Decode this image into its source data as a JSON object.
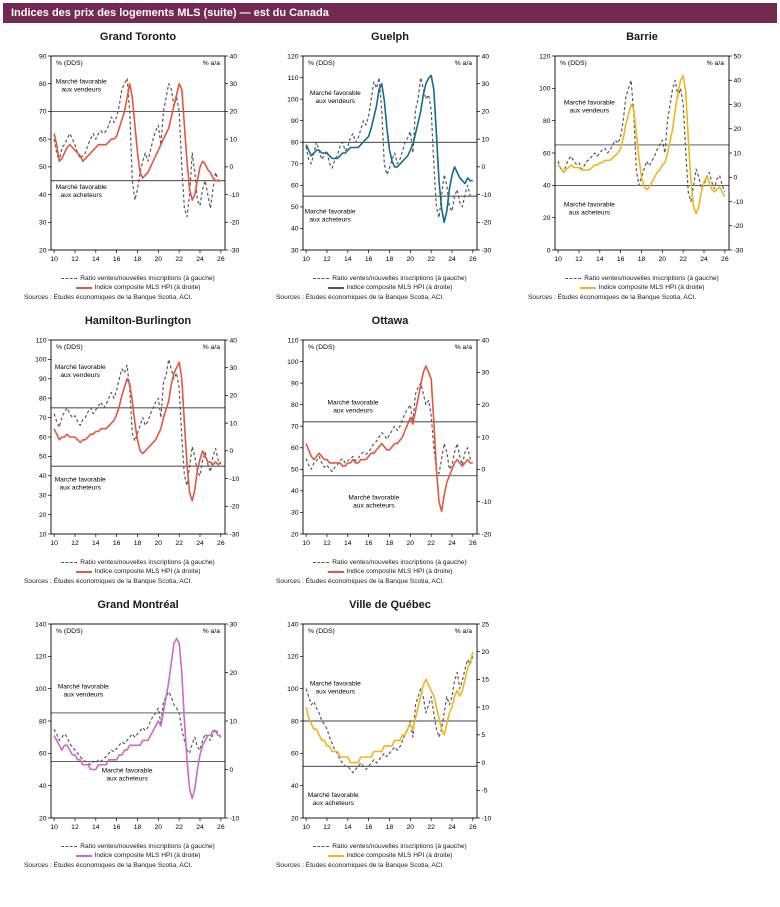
{
  "header": {
    "title": "Indices des prix des logements MLS (suite) — est du Canada",
    "bg_color": "#732a4e"
  },
  "shared": {
    "legend_ratio": "Ratio ventes/nouvelles inscriptions (à gauche)",
    "legend_hpi": "Indice composite MLS HPI (à droite)",
    "source": "Sources : Études économiques de la Banque Scotia, ACI.",
    "ratio_color": "#595959"
  },
  "chart_data": [
    {
      "type": "line",
      "title": "Grand Toronto",
      "color": "#e25740",
      "left_axis": {
        "label": "% (DDS)",
        "min": 20,
        "max": 90,
        "ticks": [
          20,
          30,
          40,
          50,
          60,
          70,
          80,
          90
        ]
      },
      "right_axis": {
        "label": "% a/a",
        "min": -30,
        "max": 40,
        "ticks": [
          -30,
          -20,
          -10,
          0,
          10,
          20,
          30,
          40
        ]
      },
      "x_ticks": [
        10,
        12,
        14,
        16,
        18,
        20,
        22,
        24,
        26
      ],
      "x_range": [
        9.7,
        26.4
      ],
      "ref_lines_left": [
        70,
        45
      ],
      "annotations": [
        {
          "lines": [
            "Marché favorable",
            "aux vendeurs"
          ],
          "x": 12.6,
          "y": 80
        },
        {
          "lines": [
            "Marché favorable",
            "aux acheteurs"
          ],
          "x": 12.6,
          "y": 42
        }
      ],
      "x_start": 10,
      "x_step": 0.25,
      "ratio_values": [
        60,
        55,
        52,
        57,
        58,
        60,
        62,
        60,
        58,
        55,
        53,
        54,
        55,
        58,
        60,
        62,
        60,
        62,
        63,
        62,
        63,
        65,
        68,
        66,
        68,
        72,
        78,
        80,
        82,
        70,
        45,
        38,
        42,
        48,
        52,
        55,
        52,
        56,
        60,
        63,
        65,
        58,
        70,
        75,
        80,
        78,
        72,
        75,
        70,
        50,
        35,
        32,
        40,
        55,
        48,
        38,
        36,
        42,
        45,
        40,
        35,
        42,
        48,
        45,
        44
      ],
      "hpi_values": [
        12,
        8,
        2,
        3,
        5,
        7,
        8,
        7,
        6,
        5,
        4,
        2,
        3,
        4,
        5,
        6,
        7,
        8,
        8,
        8,
        8,
        9,
        10,
        10,
        11,
        14,
        17,
        20,
        25,
        30,
        25,
        15,
        5,
        -2,
        -4,
        -3,
        -2,
        0,
        2,
        4,
        6,
        8,
        10,
        12,
        14,
        18,
        22,
        26,
        30,
        28,
        15,
        2,
        -8,
        -12,
        -10,
        -5,
        0,
        2,
        1,
        -1,
        -2,
        -4,
        -5,
        -5,
        -5
      ]
    },
    {
      "type": "line",
      "title": "Guelph",
      "color": "#0f6d8c",
      "left_axis": {
        "label": "% (DDS)",
        "min": 30,
        "max": 120,
        "ticks": [
          30,
          40,
          50,
          60,
          70,
          80,
          90,
          100,
          110,
          120
        ]
      },
      "right_axis": {
        "label": "% a/a",
        "min": -30,
        "max": 40,
        "ticks": [
          -30,
          -20,
          -10,
          0,
          10,
          20,
          30,
          40
        ]
      },
      "x_ticks": [
        10,
        12,
        14,
        16,
        18,
        20,
        22,
        24,
        26
      ],
      "x_range": [
        9.7,
        26.4
      ],
      "ref_lines_left": [
        80,
        55
      ],
      "annotations": [
        {
          "lines": [
            "Marché favorable",
            "aux vendeurs"
          ],
          "x": 12.8,
          "y": 102
        },
        {
          "lines": [
            "Marché favorable",
            "aux acheteurs"
          ],
          "x": 12.3,
          "y": 47
        }
      ],
      "x_start": 10,
      "x_step": 0.25,
      "ratio_values": [
        78,
        72,
        70,
        75,
        80,
        76,
        72,
        74,
        76,
        70,
        68,
        72,
        74,
        78,
        80,
        76,
        78,
        82,
        84,
        80,
        82,
        86,
        90,
        88,
        92,
        100,
        108,
        105,
        110,
        95,
        70,
        65,
        68,
        72,
        75,
        70,
        72,
        76,
        80,
        82,
        85,
        75,
        95,
        100,
        110,
        105,
        100,
        102,
        95,
        70,
        50,
        45,
        55,
        65,
        60,
        50,
        48,
        55,
        58,
        52,
        50,
        56,
        60,
        55,
        54
      ],
      "hpi_values": [
        8,
        6,
        4,
        5,
        6,
        6,
        5,
        5,
        5,
        4,
        3,
        3,
        3,
        4,
        5,
        5,
        6,
        7,
        7,
        7,
        7,
        8,
        9,
        10,
        11,
        14,
        18,
        22,
        28,
        30,
        24,
        14,
        6,
        2,
        0,
        0,
        1,
        2,
        3,
        4,
        6,
        8,
        12,
        16,
        20,
        26,
        30,
        32,
        33,
        28,
        12,
        -5,
        -15,
        -20,
        -16,
        -8,
        -3,
        0,
        -2,
        -4,
        -5,
        -6,
        -4,
        -5,
        -5
      ]
    },
    {
      "type": "line",
      "title": "Barrie",
      "color": "#f1b51c",
      "left_axis": {
        "label": "% (DDS)",
        "min": 0,
        "max": 120,
        "ticks": [
          0,
          20,
          40,
          60,
          80,
          100,
          120
        ]
      },
      "right_axis": {
        "label": "% a/a",
        "min": -30,
        "max": 50,
        "ticks": [
          -30,
          -20,
          -10,
          0,
          10,
          20,
          30,
          40,
          50
        ]
      },
      "x_ticks": [
        10,
        12,
        14,
        16,
        18,
        20,
        22,
        24,
        26
      ],
      "x_range": [
        9.7,
        26.4
      ],
      "ref_lines_left": [
        65,
        40
      ],
      "annotations": [
        {
          "lines": [
            "Marché favorable",
            "aux vendeurs"
          ],
          "x": 13,
          "y": 90
        },
        {
          "lines": [
            "Marché favorable",
            "aux acheteurs"
          ],
          "x": 13,
          "y": 27
        }
      ],
      "x_start": 10,
      "x_step": 0.25,
      "ratio_values": [
        55,
        50,
        48,
        52,
        56,
        58,
        55,
        53,
        54,
        50,
        52,
        55,
        56,
        58,
        60,
        58,
        60,
        62,
        63,
        60,
        62,
        65,
        68,
        66,
        70,
        80,
        95,
        100,
        105,
        85,
        50,
        40,
        45,
        50,
        55,
        52,
        55,
        58,
        62,
        65,
        68,
        60,
        80,
        90,
        100,
        105,
        95,
        100,
        90,
        60,
        35,
        30,
        40,
        50,
        45,
        38,
        40,
        45,
        48,
        42,
        38,
        44,
        46,
        40,
        36
      ],
      "hpi_values": [
        5,
        4,
        2,
        3,
        4,
        5,
        4,
        4,
        4,
        3,
        3,
        3,
        3,
        4,
        5,
        5,
        6,
        6,
        7,
        7,
        7,
        8,
        9,
        10,
        12,
        16,
        22,
        26,
        30,
        28,
        18,
        8,
        0,
        -4,
        -5,
        -4,
        -2,
        0,
        2,
        3,
        5,
        6,
        10,
        15,
        20,
        28,
        35,
        40,
        42,
        35,
        15,
        -2,
        -12,
        -15,
        -12,
        -6,
        -2,
        0,
        -2,
        -5,
        -6,
        -5,
        -4,
        -6,
        -8
      ]
    },
    {
      "type": "line",
      "title": "Hamilton-Burlington",
      "color": "#e25740",
      "left_axis": {
        "label": "% (DDS)",
        "min": 10,
        "max": 110,
        "ticks": [
          10,
          20,
          30,
          40,
          50,
          60,
          70,
          80,
          90,
          100,
          110
        ]
      },
      "right_axis": {
        "label": "% a/a",
        "min": -30,
        "max": 40,
        "ticks": [
          -30,
          -20,
          -10,
          0,
          10,
          20,
          30,
          40
        ]
      },
      "x_ticks": [
        10,
        12,
        14,
        16,
        18,
        20,
        22,
        24,
        26
      ],
      "x_range": [
        9.7,
        26.4
      ],
      "ref_lines_left": [
        75,
        45
      ],
      "annotations": [
        {
          "lines": [
            "Marché favorable",
            "aux vendeurs"
          ],
          "x": 12.5,
          "y": 95
        },
        {
          "lines": [
            "Marché favorable",
            "aux acheteurs"
          ],
          "x": 12.5,
          "y": 37
        }
      ],
      "x_start": 10,
      "x_step": 0.25,
      "ratio_values": [
        72,
        68,
        65,
        70,
        73,
        75,
        72,
        70,
        71,
        68,
        66,
        69,
        70,
        73,
        75,
        72,
        74,
        76,
        78,
        75,
        77,
        80,
        83,
        80,
        84,
        90,
        95,
        93,
        97,
        85,
        62,
        58,
        62,
        66,
        70,
        66,
        68,
        72,
        75,
        78,
        80,
        70,
        88,
        92,
        100,
        95,
        90,
        93,
        85,
        60,
        40,
        35,
        45,
        55,
        50,
        42,
        40,
        48,
        52,
        46,
        42,
        50,
        54,
        48,
        46
      ],
      "hpi_values": [
        8,
        6,
        4,
        5,
        5,
        6,
        5,
        5,
        5,
        4,
        3,
        4,
        4,
        5,
        6,
        6,
        7,
        7,
        8,
        8,
        8,
        9,
        10,
        11,
        13,
        16,
        20,
        23,
        26,
        24,
        18,
        10,
        4,
        0,
        -1,
        0,
        1,
        2,
        3,
        4,
        6,
        8,
        12,
        15,
        18,
        24,
        28,
        30,
        32,
        26,
        10,
        -5,
        -15,
        -18,
        -14,
        -7,
        -3,
        0,
        -2,
        -4,
        -4,
        -5,
        -4,
        -5,
        -4
      ]
    },
    {
      "type": "line",
      "title": "Ottawa",
      "color": "#e25740",
      "left_axis": {
        "label": "% (DDS)",
        "min": 20,
        "max": 110,
        "ticks": [
          20,
          30,
          40,
          50,
          60,
          70,
          80,
          90,
          100,
          110
        ]
      },
      "right_axis": {
        "label": "% a/a",
        "min": -20,
        "max": 40,
        "ticks": [
          -20,
          -10,
          0,
          10,
          20,
          30,
          40
        ]
      },
      "x_ticks": [
        10,
        12,
        14,
        16,
        18,
        20,
        22,
        24,
        26
      ],
      "x_range": [
        9.7,
        26.4
      ],
      "ref_lines_left": [
        72,
        47
      ],
      "annotations": [
        {
          "lines": [
            "Marché favorable",
            "aux vendeurs"
          ],
          "x": 14.5,
          "y": 80
        },
        {
          "lines": [
            "Marché favorable",
            "aux acheteurs"
          ],
          "x": 16.5,
          "y": 36
        }
      ],
      "x_start": 10,
      "x_step": 0.25,
      "ratio_values": [
        55,
        52,
        50,
        53,
        54,
        56,
        53,
        51,
        52,
        50,
        49,
        51,
        52,
        54,
        55,
        53,
        54,
        55,
        56,
        54,
        55,
        57,
        58,
        57,
        58,
        60,
        62,
        63,
        65,
        67,
        66,
        64,
        66,
        68,
        70,
        68,
        70,
        73,
        76,
        78,
        80,
        72,
        85,
        88,
        90,
        85,
        80,
        82,
        75,
        60,
        50,
        48,
        55,
        62,
        58,
        50,
        52,
        58,
        62,
        56,
        52,
        58,
        60,
        55,
        54
      ],
      "hpi_values": [
        8,
        6,
        4,
        3,
        4,
        5,
        4,
        3,
        3,
        2,
        2,
        2,
        2,
        2,
        1,
        1,
        2,
        2,
        3,
        2,
        2,
        3,
        3,
        3,
        4,
        5,
        5,
        6,
        7,
        8,
        7,
        6,
        6,
        7,
        8,
        8,
        9,
        10,
        12,
        14,
        16,
        14,
        18,
        22,
        26,
        30,
        32,
        30,
        28,
        15,
        0,
        -10,
        -13,
        -8,
        -4,
        -2,
        0,
        2,
        3,
        2,
        1,
        2,
        3,
        2,
        2
      ]
    },
    {
      "type": "line",
      "title": "Grand Montréal",
      "color": "#cf68c8",
      "left_axis": {
        "label": "% (DDS)",
        "min": 20,
        "max": 140,
        "ticks": [
          20,
          40,
          60,
          80,
          100,
          120,
          140
        ]
      },
      "right_axis": {
        "label": "% a/a",
        "min": -10,
        "max": 30,
        "ticks": [
          -10,
          0,
          10,
          20,
          30
        ]
      },
      "x_ticks": [
        10,
        12,
        14,
        16,
        18,
        20,
        22,
        24,
        26
      ],
      "x_range": [
        9.7,
        26.4
      ],
      "ref_lines_left": [
        85,
        55
      ],
      "annotations": [
        {
          "lines": [
            "Marché favorable",
            "aux vendeurs"
          ],
          "x": 12.8,
          "y": 100
        },
        {
          "lines": [
            "Marché favorable",
            "aux acheteurs"
          ],
          "x": 17,
          "y": 48
        }
      ],
      "x_start": 10,
      "x_step": 0.25,
      "ratio_values": [
        75,
        72,
        68,
        70,
        72,
        70,
        66,
        64,
        62,
        60,
        58,
        56,
        55,
        54,
        53,
        55,
        54,
        56,
        55,
        57,
        58,
        60,
        62,
        61,
        63,
        65,
        67,
        66,
        68,
        70,
        72,
        70,
        72,
        74,
        76,
        74,
        76,
        80,
        83,
        85,
        88,
        78,
        92,
        95,
        98,
        95,
        90,
        88,
        85,
        75,
        68,
        62,
        60,
        66,
        70,
        64,
        62,
        68,
        72,
        70,
        68,
        72,
        75,
        72,
        70
      ],
      "hpi_values": [
        7,
        6,
        5,
        4,
        5,
        5,
        4,
        3,
        3,
        2,
        2,
        1,
        1,
        1,
        0,
        0,
        0,
        1,
        1,
        1,
        1,
        2,
        2,
        2,
        2,
        3,
        3,
        4,
        4,
        5,
        5,
        5,
        5,
        5,
        6,
        6,
        6,
        7,
        8,
        9,
        10,
        9,
        12,
        15,
        18,
        22,
        26,
        27,
        26,
        20,
        10,
        2,
        -4,
        -6,
        -4,
        0,
        3,
        5,
        6,
        7,
        7,
        8,
        8,
        7,
        7
      ]
    },
    {
      "type": "line",
      "title": "Ville de Québec",
      "color": "#f1b51c",
      "left_axis": {
        "label": "% (DDS)",
        "min": 20,
        "max": 140,
        "ticks": [
          20,
          40,
          60,
          80,
          100,
          120,
          140
        ]
      },
      "right_axis": {
        "label": "% a/a",
        "min": -10,
        "max": 25,
        "ticks": [
          -10,
          -5,
          0,
          5,
          10,
          15,
          20,
          25
        ]
      },
      "x_ticks": [
        10,
        12,
        14,
        16,
        18,
        20,
        22,
        24,
        26
      ],
      "x_range": [
        9.7,
        26.4
      ],
      "ref_lines_left": [
        80,
        52
      ],
      "annotations": [
        {
          "lines": [
            "Marché favorable",
            "aux vendeurs"
          ],
          "x": 12.8,
          "y": 102
        },
        {
          "lines": [
            "Marché favorable",
            "aux acheteurs"
          ],
          "x": 12.6,
          "y": 33
        }
      ],
      "x_start": 10,
      "x_step": 0.25,
      "ratio_values": [
        100,
        95,
        90,
        92,
        88,
        85,
        80,
        78,
        75,
        70,
        66,
        62,
        60,
        56,
        54,
        52,
        52,
        50,
        48,
        50,
        52,
        54,
        52,
        50,
        52,
        54,
        56,
        54,
        56,
        58,
        60,
        58,
        60,
        62,
        64,
        62,
        64,
        68,
        72,
        75,
        80,
        70,
        90,
        95,
        100,
        95,
        85,
        90,
        95,
        85,
        75,
        70,
        75,
        85,
        95,
        90,
        95,
        105,
        110,
        100,
        105,
        112,
        118,
        115,
        120
      ],
      "hpi_values": [
        10,
        8,
        7,
        6,
        6,
        5,
        4,
        4,
        3,
        3,
        2,
        2,
        2,
        1,
        1,
        1,
        1,
        0,
        0,
        0,
        0,
        1,
        1,
        1,
        1,
        1,
        2,
        2,
        2,
        2,
        3,
        3,
        3,
        3,
        4,
        4,
        4,
        5,
        5,
        6,
        7,
        6,
        8,
        10,
        12,
        14,
        15,
        14,
        13,
        12,
        10,
        8,
        6,
        5,
        7,
        9,
        10,
        12,
        13,
        12,
        13,
        15,
        17,
        18,
        20
      ]
    }
  ]
}
